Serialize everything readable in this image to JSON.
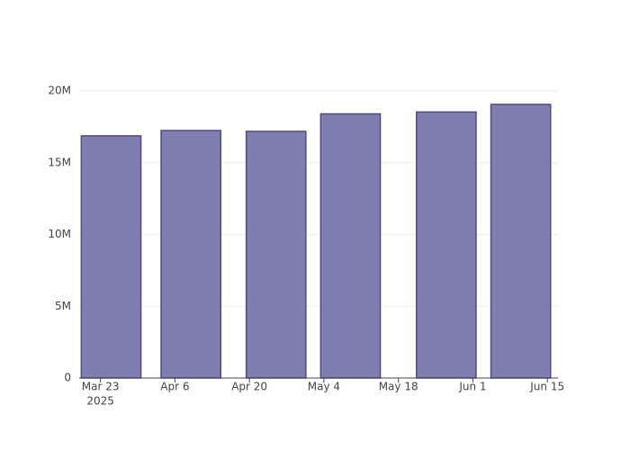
{
  "chart_data": {
    "type": "bar",
    "x": [
      "2025-03-25",
      "2025-04-09",
      "2025-04-25",
      "2025-05-09",
      "2025-05-27",
      "2025-06-10"
    ],
    "values": [
      16870000,
      17240000,
      17180000,
      18400000,
      18530000,
      19060000
    ],
    "color": "#7f7faf",
    "edge_color": "#4e4a86",
    "xlim": [
      "2025-03-19",
      "2025-06-17"
    ],
    "xticks": [
      {
        "value": "2025-03-23",
        "label": "Mar 23"
      },
      {
        "value": "2025-04-06",
        "label": "Apr 6"
      },
      {
        "value": "2025-04-20",
        "label": "Apr 20"
      },
      {
        "value": "2025-05-04",
        "label": "May 4"
      },
      {
        "value": "2025-05-18",
        "label": "May 18"
      },
      {
        "value": "2025-06-01",
        "label": "Jun 1"
      },
      {
        "value": "2025-06-15",
        "label": "Jun 15"
      }
    ],
    "x_year": "2025",
    "ylim": [
      0,
      20000000
    ],
    "yticks": [
      0,
      {
        "value": 5000000,
        "label": "5M"
      },
      {
        "value": 10000000,
        "label": "10M"
      },
      {
        "value": 15000000,
        "label": "15M"
      },
      {
        "value": 20000000,
        "label": "20M"
      }
    ],
    "grid": true
  }
}
